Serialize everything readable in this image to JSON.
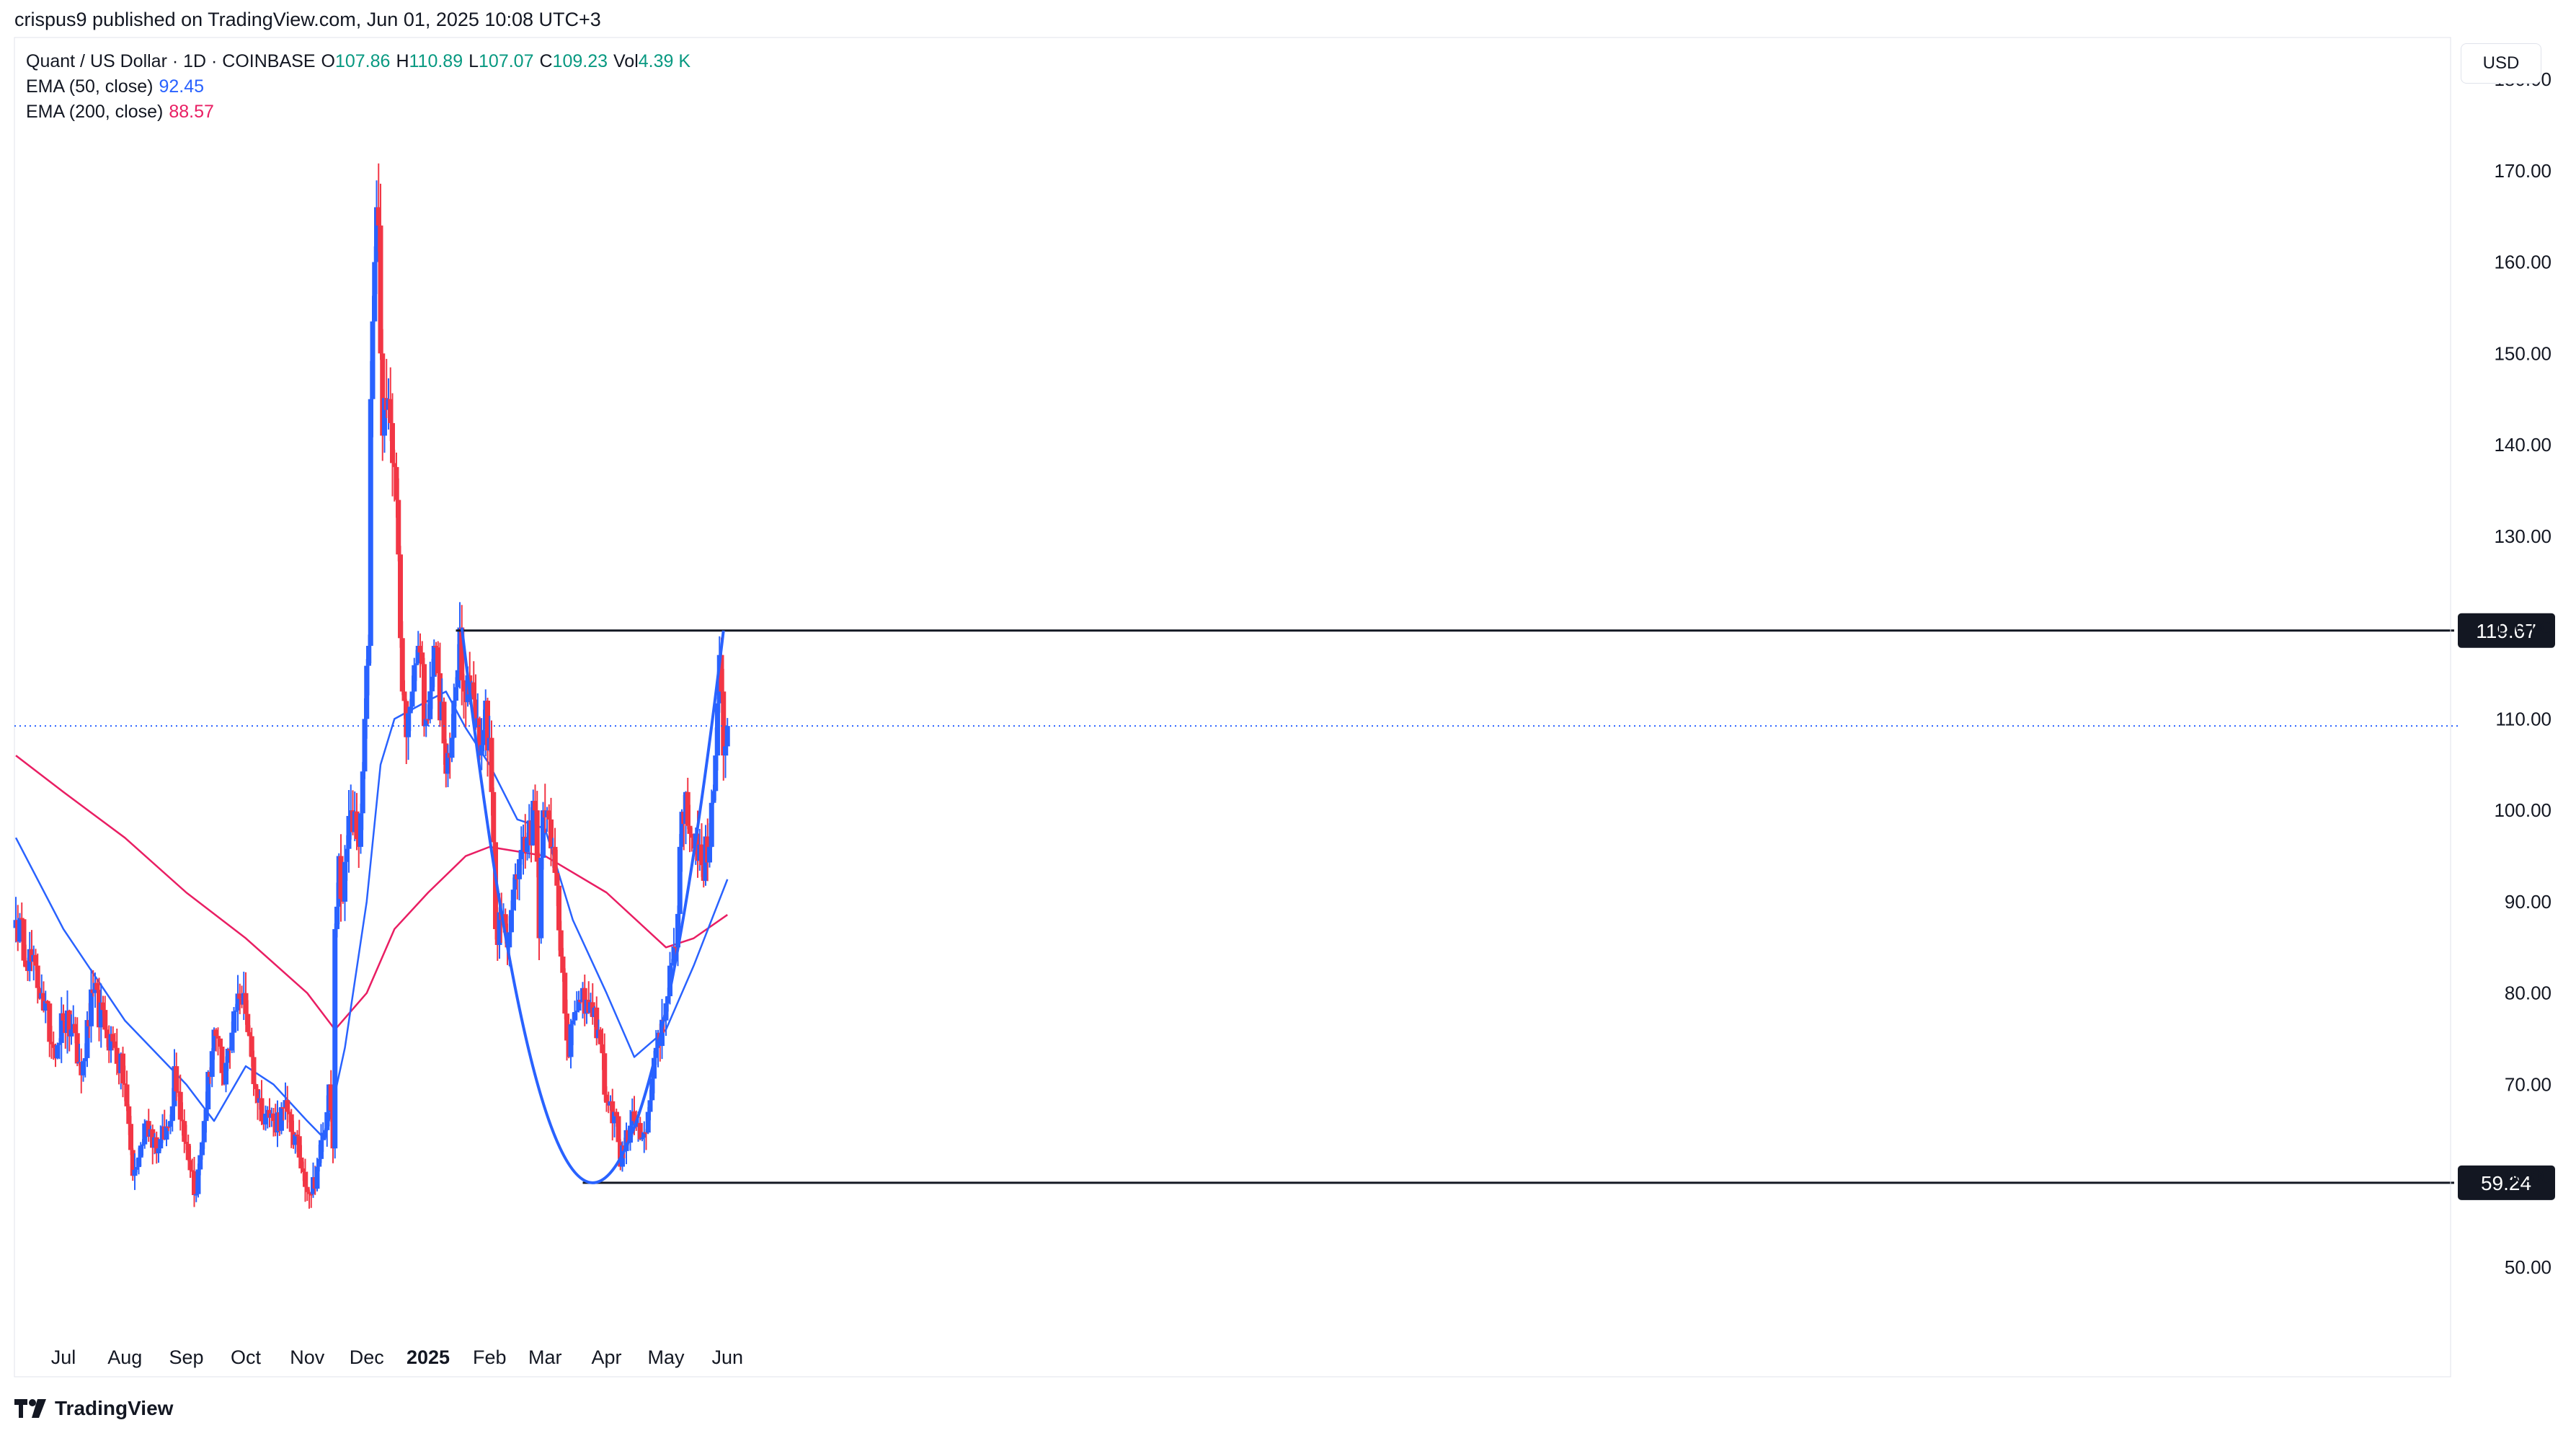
{
  "header": {
    "published_by": "crispus9 published on TradingView.com, Jun 01, 2025 10:08 UTC+3"
  },
  "legend": {
    "symbol": "Quant / US Dollar · 1D · COINBASE",
    "o_label": "O",
    "o": "107.86",
    "h_label": "H",
    "h": "110.89",
    "l_label": "L",
    "l": "107.07",
    "c_label": "C",
    "c": "109.23",
    "vol_label": "Vol",
    "vol": "4.39 K",
    "ema50_label": "EMA (50, close)",
    "ema50_value": "92.45",
    "ema200_label": "EMA (200, close)",
    "ema200_value": "88.57"
  },
  "currency_button": "USD",
  "footer": {
    "brand": "TradingView"
  },
  "colors": {
    "up": "#2962ff",
    "down": "#f23645",
    "ema50": "#2962ff",
    "ema200": "#e91e63",
    "lastPrice": "#2962ff",
    "grid": "#f0f3fa"
  },
  "chart_data": {
    "type": "candlestick",
    "y_axis_ticks": [
      "180.00",
      "170.00",
      "160.00",
      "150.00",
      "140.00",
      "130.00",
      "120.00",
      "110.00",
      "100.00",
      "90.00",
      "80.00",
      "70.00",
      "60.00",
      "50.00"
    ],
    "ylim": [
      43,
      183
    ],
    "x_axis_labels": [
      {
        "label": "Jul",
        "date": "2024-07-01"
      },
      {
        "label": "Aug",
        "date": "2024-08-01"
      },
      {
        "label": "Sep",
        "date": "2024-09-01"
      },
      {
        "label": "Oct",
        "date": "2024-10-01"
      },
      {
        "label": "Nov",
        "date": "2024-11-01"
      },
      {
        "label": "Dec",
        "date": "2024-12-01"
      },
      {
        "label": "2025",
        "date": "2025-01-01",
        "bold": true
      },
      {
        "label": "Feb",
        "date": "2025-02-01"
      },
      {
        "label": "Mar",
        "date": "2025-03-01"
      },
      {
        "label": "Apr",
        "date": "2025-04-01"
      },
      {
        "label": "May",
        "date": "2025-05-01"
      },
      {
        "label": "Jun",
        "date": "2025-06-01"
      }
    ],
    "x_start": "2024-06-07",
    "last_price": 109.23,
    "resistance": {
      "value": 119.67,
      "label": "119.67"
    },
    "support": {
      "value": 59.24,
      "label": "59.24"
    },
    "anchors": [
      [
        "2024-06-07",
        88
      ],
      [
        "2024-06-20",
        80
      ],
      [
        "2024-06-26",
        74
      ],
      [
        "2024-07-01",
        77
      ],
      [
        "2024-07-05",
        76
      ],
      [
        "2024-07-10",
        71
      ],
      [
        "2024-07-16",
        80
      ],
      [
        "2024-07-22",
        76
      ],
      [
        "2024-07-27",
        74
      ],
      [
        "2024-08-01",
        70
      ],
      [
        "2024-08-05",
        60
      ],
      [
        "2024-08-08",
        62
      ],
      [
        "2024-08-12",
        66
      ],
      [
        "2024-08-18",
        63
      ],
      [
        "2024-08-24",
        66
      ],
      [
        "2024-08-26",
        72
      ],
      [
        "2024-08-30",
        66
      ],
      [
        "2024-09-06",
        58
      ],
      [
        "2024-09-10",
        66
      ],
      [
        "2024-09-15",
        76
      ],
      [
        "2024-09-20",
        70
      ],
      [
        "2024-09-25",
        78
      ],
      [
        "2024-09-30",
        80
      ],
      [
        "2024-10-04",
        73
      ],
      [
        "2024-10-07",
        68
      ],
      [
        "2024-10-15",
        66
      ],
      [
        "2024-10-22",
        67
      ],
      [
        "2024-10-28",
        62
      ],
      [
        "2024-11-03",
        58
      ],
      [
        "2024-11-06",
        61
      ],
      [
        "2024-11-10",
        65
      ],
      [
        "2024-11-12",
        70
      ],
      [
        "2024-11-14",
        63
      ],
      [
        "2024-11-15",
        87
      ],
      [
        "2024-11-17",
        95
      ],
      [
        "2024-11-19",
        90
      ],
      [
        "2024-11-23",
        100
      ],
      [
        "2024-11-27",
        96
      ],
      [
        "2024-11-30",
        110
      ],
      [
        "2024-12-02",
        118
      ],
      [
        "2024-12-03",
        145
      ],
      [
        "2024-12-05",
        160
      ],
      [
        "2024-12-06",
        166
      ],
      [
        "2024-12-07",
        164
      ],
      [
        "2024-12-08",
        150
      ],
      [
        "2024-12-09",
        141
      ],
      [
        "2024-12-12",
        145
      ],
      [
        "2024-12-14",
        138
      ],
      [
        "2024-12-17",
        128
      ],
      [
        "2024-12-19",
        113
      ],
      [
        "2024-12-21",
        108
      ],
      [
        "2024-12-24",
        113
      ],
      [
        "2024-12-27",
        118
      ],
      [
        "2024-12-31",
        110
      ],
      [
        "2025-01-04",
        118
      ],
      [
        "2025-01-06",
        115
      ],
      [
        "2025-01-10",
        104
      ],
      [
        "2025-01-14",
        112
      ],
      [
        "2025-01-17",
        120
      ],
      [
        "2025-01-19",
        113
      ],
      [
        "2025-01-23",
        114
      ],
      [
        "2025-01-27",
        106
      ],
      [
        "2025-01-30",
        112
      ],
      [
        "2025-02-02",
        102
      ],
      [
        "2025-02-04",
        87
      ],
      [
        "2025-02-07",
        88
      ],
      [
        "2025-02-10",
        85
      ],
      [
        "2025-02-14",
        93
      ],
      [
        "2025-02-20",
        97
      ],
      [
        "2025-02-24",
        100
      ],
      [
        "2025-02-26",
        86
      ],
      [
        "2025-02-28",
        100
      ],
      [
        "2025-03-03",
        99
      ],
      [
        "2025-03-05",
        96
      ],
      [
        "2025-03-09",
        84
      ],
      [
        "2025-03-13",
        73
      ],
      [
        "2025-03-15",
        77
      ],
      [
        "2025-03-19",
        79
      ],
      [
        "2025-03-24",
        79
      ],
      [
        "2025-03-28",
        76
      ],
      [
        "2025-04-01",
        68
      ],
      [
        "2025-04-05",
        67
      ],
      [
        "2025-04-08",
        61
      ],
      [
        "2025-04-11",
        65
      ],
      [
        "2025-04-15",
        66
      ],
      [
        "2025-04-18",
        64
      ],
      [
        "2025-04-22",
        67
      ],
      [
        "2025-04-26",
        74
      ],
      [
        "2025-04-30",
        77
      ],
      [
        "2025-05-03",
        83
      ],
      [
        "2025-05-06",
        85
      ],
      [
        "2025-05-08",
        96
      ],
      [
        "2025-05-11",
        102
      ],
      [
        "2025-05-14",
        97
      ],
      [
        "2025-05-19",
        94
      ],
      [
        "2025-05-23",
        96
      ],
      [
        "2025-05-26",
        106
      ],
      [
        "2025-05-28",
        117
      ],
      [
        "2025-05-29",
        113
      ],
      [
        "2025-05-30",
        106
      ],
      [
        "2025-05-31",
        107
      ],
      [
        "2025-06-01",
        109
      ]
    ],
    "ema50": [
      [
        "2024-06-07",
        97
      ],
      [
        "2024-07-01",
        87
      ],
      [
        "2024-08-01",
        77
      ],
      [
        "2024-09-01",
        70
      ],
      [
        "2024-09-15",
        66
      ],
      [
        "2024-10-01",
        72
      ],
      [
        "2024-10-15",
        70
      ],
      [
        "2024-11-01",
        66
      ],
      [
        "2024-11-10",
        64
      ],
      [
        "2024-11-20",
        74
      ],
      [
        "2024-12-01",
        90
      ],
      [
        "2024-12-08",
        105
      ],
      [
        "2024-12-15",
        110
      ],
      [
        "2025-01-01",
        112
      ],
      [
        "2025-01-10",
        113
      ],
      [
        "2025-01-20",
        109
      ],
      [
        "2025-02-01",
        105
      ],
      [
        "2025-02-15",
        99
      ],
      [
        "2025-03-01",
        98
      ],
      [
        "2025-03-15",
        88
      ],
      [
        "2025-04-01",
        80
      ],
      [
        "2025-04-15",
        73
      ],
      [
        "2025-05-01",
        76
      ],
      [
        "2025-05-15",
        83
      ],
      [
        "2025-06-01",
        92.45
      ]
    ],
    "ema200": [
      [
        "2024-06-07",
        106
      ],
      [
        "2024-07-01",
        102
      ],
      [
        "2024-08-01",
        97
      ],
      [
        "2024-09-01",
        91
      ],
      [
        "2024-10-01",
        86
      ],
      [
        "2024-11-01",
        80
      ],
      [
        "2024-11-15",
        76
      ],
      [
        "2024-12-01",
        80
      ],
      [
        "2024-12-15",
        87
      ],
      [
        "2025-01-01",
        91
      ],
      [
        "2025-01-20",
        95
      ],
      [
        "2025-02-01",
        96
      ],
      [
        "2025-03-01",
        95
      ],
      [
        "2025-04-01",
        91
      ],
      [
        "2025-05-01",
        85
      ],
      [
        "2025-05-15",
        86
      ],
      [
        "2025-06-01",
        88.57
      ]
    ],
    "annotations": {
      "curve": [
        [
          "2025-01-18",
          120
        ],
        [
          "2025-03-25",
          59.24
        ],
        [
          "2025-05-30",
          119.67
        ]
      ],
      "curve_color": "#2962ff"
    }
  }
}
